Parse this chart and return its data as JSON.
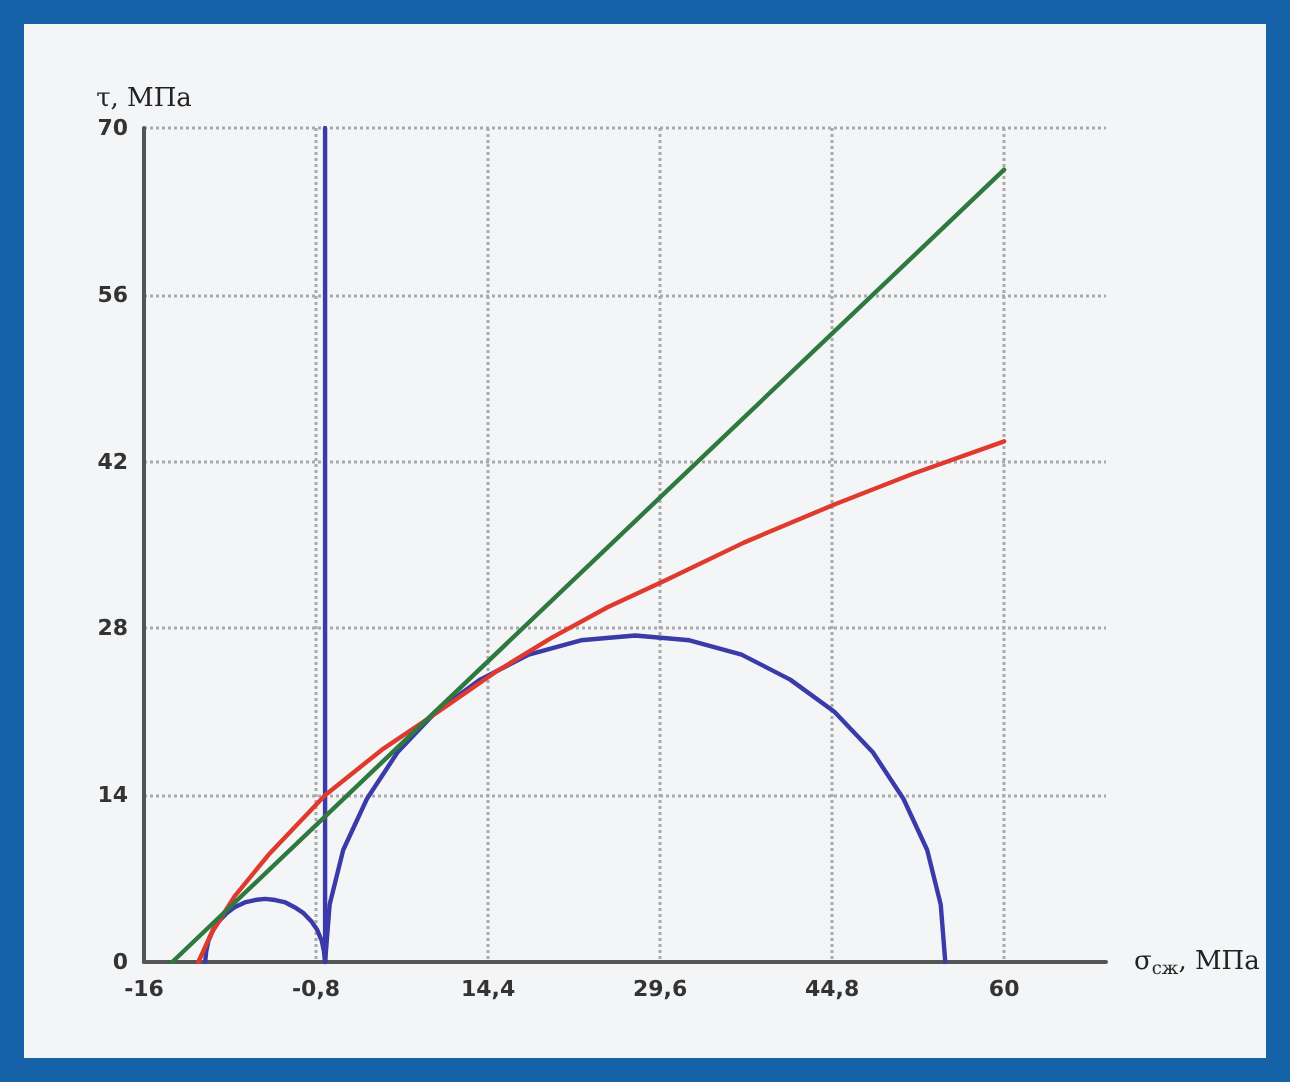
{
  "chart_data": {
    "type": "line",
    "xlabel": "σ$_{сж}$, МПа",
    "ylabel": "τ, МПа",
    "xlim": [
      -16,
      69
    ],
    "ylim": [
      0,
      70
    ],
    "xticks": [
      -16,
      {
        "value": -0.8,
        "label": "-0,8"
      },
      {
        "value": 14.4,
        "label": "14,4"
      },
      {
        "value": 29.6,
        "label": "29,6"
      },
      {
        "value": 44.8,
        "label": "44,8"
      },
      60
    ],
    "yticks": [
      0,
      14,
      28,
      42,
      56,
      70
    ],
    "grid": true,
    "marker": "none",
    "line_style": "solid",
    "series": [
      {
        "color": "#3a3aa8",
        "x": [
          0,
          0
        ],
        "values": [
          0,
          70
        ]
      },
      {
        "color": "#3a3aa8",
        "x": [
          -10.6,
          -10.5,
          -10.3,
          -9.9,
          -9.4,
          -8.7,
          -8,
          -7.1,
          -6.2,
          -5.3,
          -4.4,
          -3.5,
          -2.7,
          -1.9,
          -1.2,
          -0.7,
          -0.3,
          -0.1,
          0
        ],
        "values": [
          0,
          0.9,
          1.8,
          2.7,
          3.4,
          4.1,
          4.6,
          5,
          5.2,
          5.3,
          5.2,
          5,
          4.6,
          4.1,
          3.4,
          2.7,
          1.8,
          0.9,
          0
        ]
      },
      {
        "color": "#3a3aa8",
        "x": [
          0,
          0.4,
          1.6,
          3.7,
          6.4,
          9.8,
          13.7,
          18,
          22.6,
          27.4,
          32.2,
          36.8,
          41.1,
          45,
          48.4,
          51.1,
          53.2,
          54.4,
          54.8
        ],
        "values": [
          0,
          4.8,
          9.4,
          13.7,
          17.6,
          21,
          23.7,
          25.8,
          27,
          27.4,
          27,
          25.8,
          23.7,
          21,
          17.6,
          13.7,
          9.4,
          4.8,
          0
        ]
      },
      {
        "color": "#e03a2e",
        "x": [
          -11.2,
          -10,
          -8,
          -5,
          0,
          5,
          10,
          15,
          20,
          25,
          30,
          37,
          45,
          52,
          60
        ],
        "values": [
          0,
          2.5,
          5.5,
          9,
          14,
          17.8,
          21,
          24.3,
          27.2,
          29.8,
          32,
          35.2,
          38.4,
          41,
          43.7
        ]
      },
      {
        "color": "#2e7a3e",
        "x": [
          -13.5,
          60
        ],
        "values": [
          0,
          66.5
        ]
      }
    ]
  }
}
